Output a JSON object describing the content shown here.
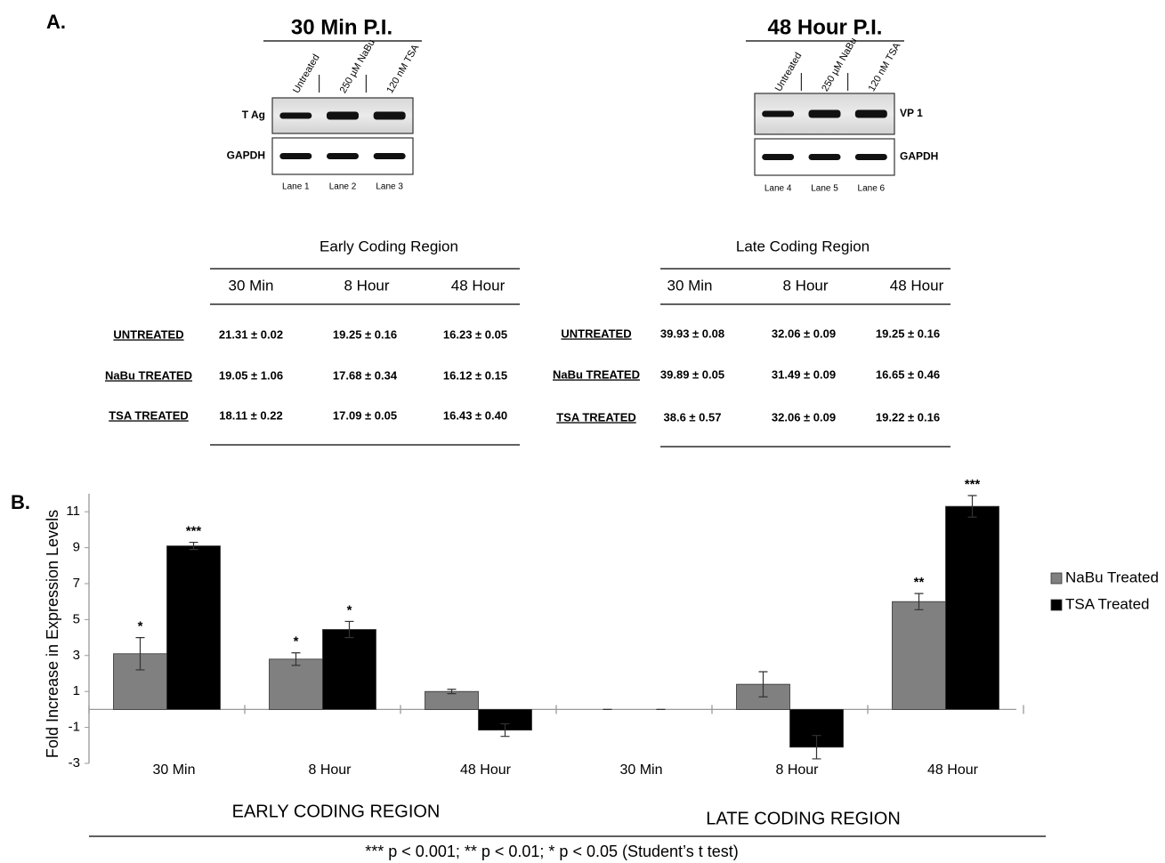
{
  "panel_a": {
    "label": "A.",
    "blots": [
      {
        "title": "30 Min P.I.",
        "lane_headers": [
          "Untreated",
          "250 µM NaBu",
          "120 nM TSA"
        ],
        "rows": [
          "T Ag",
          "GAPDH"
        ],
        "lanes": [
          "Lane 1",
          "Lane 2",
          "Lane 3"
        ]
      },
      {
        "title": "48 Hour P.I.",
        "lane_headers": [
          "Untreated",
          "250 µM NaBu",
          "120 nM TSA"
        ],
        "rows": [
          "VP 1",
          "GAPDH"
        ],
        "lanes": [
          "Lane 4",
          "Lane 5",
          "Lane 6"
        ]
      }
    ],
    "tables": [
      {
        "title": "Early Coding Region",
        "columns": [
          "30 Min",
          "8 Hour",
          "48 Hour"
        ],
        "rows": [
          {
            "label": "UNTREATED",
            "cells": [
              "21.31 ± 0.02",
              "19.25 ± 0.16",
              "16.23 ± 0.05"
            ]
          },
          {
            "label": "NaBu TREATED",
            "cells": [
              "19.05 ± 1.06",
              "17.68 ± 0.34",
              "16.12 ± 0.15"
            ]
          },
          {
            "label": "TSA TREATED",
            "cells": [
              "18.11 ± 0.22",
              "17.09 ± 0.05",
              "16.43 ± 0.40"
            ]
          }
        ]
      },
      {
        "title": "Late Coding Region",
        "columns": [
          "30 Min",
          "8 Hour",
          "48 Hour"
        ],
        "rows": [
          {
            "label": "UNTREATED",
            "cells": [
              "39.93 ± 0.08",
              "32.06 ± 0.09",
              "19.25 ± 0.16"
            ]
          },
          {
            "label": "NaBu TREATED",
            "cells": [
              "39.89 ± 0.05",
              "31.49 ± 0.09",
              "16.65 ± 0.46"
            ]
          },
          {
            "label": "TSA TREATED",
            "cells": [
              "38.6 ± 0.57",
              "32.06 ± 0.09",
              "19.22 ± 0.16"
            ]
          }
        ]
      }
    ]
  },
  "chart_data": {
    "type": "bar",
    "panel_label": "B.",
    "ylabel": "Fold Increase in Expression Levels",
    "categories": [
      "30 Min",
      "8 Hour",
      "48 Hour",
      "30 Min",
      "8 Hour",
      "48 Hour"
    ],
    "groups": [
      {
        "name": "EARLY CODING REGION",
        "span": [
          0,
          2
        ]
      },
      {
        "name": "LATE CODING REGION",
        "span": [
          3,
          5
        ]
      }
    ],
    "series": [
      {
        "name": "NaBu Treated",
        "color": "#808080",
        "values": [
          3.1,
          2.8,
          1.0,
          0,
          1.4,
          6.0
        ],
        "errors": [
          0.9,
          0.35,
          0.12,
          0,
          0.7,
          0.45
        ],
        "annotations": [
          "*",
          "*",
          null,
          null,
          null,
          "**"
        ]
      },
      {
        "name": "TSA Treated",
        "color": "#000000",
        "values": [
          9.1,
          4.45,
          -1.15,
          0,
          -2.1,
          11.3
        ],
        "errors": [
          0.2,
          0.45,
          0.35,
          0,
          0.65,
          0.6
        ],
        "annotations": [
          "***",
          "*",
          null,
          null,
          null,
          "***"
        ]
      }
    ],
    "ylim": [
      -3,
      12
    ],
    "yticks": [
      -3,
      -1,
      1,
      3,
      5,
      7,
      9,
      11
    ],
    "legend": "right",
    "footnote": "*** p < 0.001; ** p < 0.01; * p < 0.05 (Student’s t test)"
  }
}
